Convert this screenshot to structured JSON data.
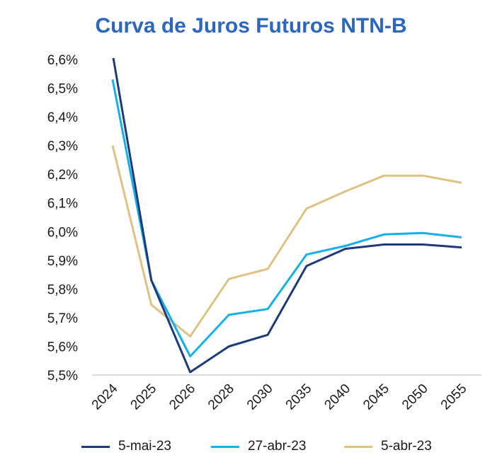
{
  "chart_data": {
    "type": "line",
    "title": "Curva de Juros Futuros NTN-B",
    "xlabel": "",
    "ylabel": "",
    "categories": [
      "2024",
      "2025",
      "2026",
      "2028",
      "2030",
      "2035",
      "2040",
      "2045",
      "2050",
      "2055"
    ],
    "ylim": [
      5.5,
      6.6
    ],
    "yticks": [
      "6,6%",
      "6,5%",
      "6,4%",
      "6,3%",
      "6,2%",
      "6,1%",
      "6,0%",
      "5,9%",
      "5,8%",
      "5,7%",
      "5,6%",
      "5,5%"
    ],
    "series": [
      {
        "name": "5-mai-23",
        "color": "#1f3a7a",
        "values": [
          6.62,
          5.83,
          5.51,
          5.6,
          5.64,
          5.88,
          5.94,
          5.955,
          5.955,
          5.945
        ]
      },
      {
        "name": "27-abr-23",
        "color": "#14b0ec",
        "values": [
          6.53,
          5.83,
          5.565,
          5.71,
          5.73,
          5.92,
          5.95,
          5.99,
          5.995,
          5.98
        ]
      },
      {
        "name": "5-abr-23",
        "color": "#dfc282",
        "values": [
          6.3,
          5.745,
          5.635,
          5.835,
          5.87,
          6.08,
          6.14,
          6.195,
          6.195,
          6.17
        ]
      }
    ],
    "legend_position": "bottom",
    "grid": false
  },
  "colors": {
    "title": "#2b66c0",
    "axis": "#cfcfcf",
    "text": "#1a1a1a"
  }
}
